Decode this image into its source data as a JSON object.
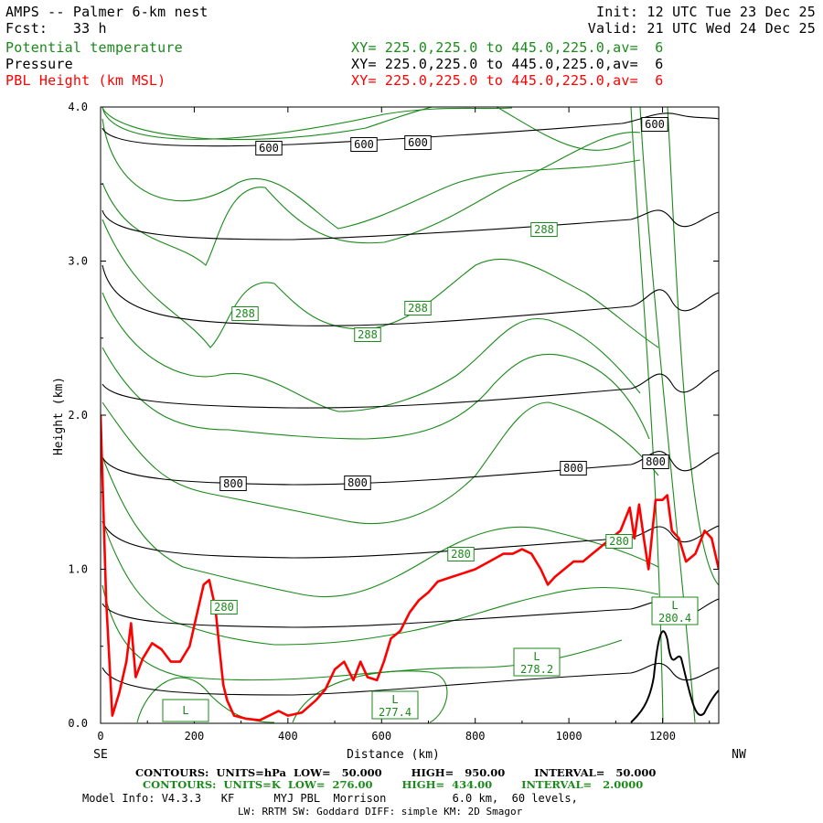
{
  "header": {
    "title": "AMPS -- Palmer 6-km nest",
    "init": "Init: 12 UTC Tue 23 Dec 25",
    "fcst": "Fcst:   33 h",
    "valid": "Valid: 21 UTC Wed 24 Dec 25",
    "fields": [
      {
        "name": "Potential temperature",
        "xy": "XY= 225.0,225.0 to 445.0,225.0,av=  6",
        "color": "#1a8a1a"
      },
      {
        "name": "Pressure",
        "xy": "XY= 225.0,225.0 to 445.0,225.0,av=  6",
        "color": "#000000"
      },
      {
        "name": "PBL Height (km MSL)",
        "xy": "XY= 225.0,225.0 to 445.0,225.0,av=  6",
        "color": "#ff0000"
      }
    ]
  },
  "chart_data": {
    "type": "line",
    "ylabel": "Height (km)",
    "xlabel": "Distance (km)",
    "xlim": [
      0,
      1320
    ],
    "ylim": [
      0,
      4.0
    ],
    "x_ticks": [
      "0",
      "200",
      "400",
      "600",
      "800",
      "1000",
      "1200"
    ],
    "y_ticks": [
      "0.0",
      "1.0",
      "2.0",
      "3.0",
      "4.0"
    ],
    "left_end_label": "SE",
    "right_end_label": "NW",
    "pressure_labels": [
      "600",
      "600",
      "600",
      "600",
      "800",
      "800",
      "800",
      "800"
    ],
    "theta_labels": [
      "288",
      "288",
      "288",
      "288",
      "280",
      "280",
      "280"
    ],
    "lows": [
      {
        "mark": "L",
        "value": ""
      },
      {
        "mark": "L",
        "value": "277.4"
      },
      {
        "mark": "L",
        "value": "278.2"
      },
      {
        "mark": "L",
        "value": "280.4"
      }
    ],
    "series": [
      {
        "name": "PBL Height (km MSL)",
        "color": "#ff0000",
        "x": [
          0,
          12,
          25,
          40,
          55,
          65,
          75,
          90,
          110,
          130,
          150,
          170,
          190,
          205,
          220,
          232,
          245,
          255,
          262,
          270,
          285,
          310,
          340,
          360,
          380,
          400,
          430,
          460,
          480,
          500,
          520,
          540,
          555,
          570,
          590,
          605,
          620,
          640,
          660,
          680,
          700,
          720,
          750,
          780,
          800,
          830,
          860,
          880,
          900,
          920,
          940,
          955,
          970,
          990,
          1010,
          1030,
          1050,
          1070,
          1090,
          1110,
          1130,
          1140,
          1150,
          1160,
          1170,
          1185,
          1200,
          1210,
          1220,
          1235,
          1250,
          1270,
          1290,
          1305,
          1320
        ],
        "y": [
          2.0,
          0.8,
          0.05,
          0.2,
          0.4,
          0.65,
          0.3,
          0.42,
          0.52,
          0.48,
          0.4,
          0.4,
          0.5,
          0.7,
          0.9,
          0.93,
          0.75,
          0.45,
          0.25,
          0.15,
          0.05,
          0.03,
          0.02,
          0.05,
          0.08,
          0.05,
          0.07,
          0.15,
          0.22,
          0.35,
          0.4,
          0.28,
          0.4,
          0.3,
          0.28,
          0.4,
          0.55,
          0.6,
          0.72,
          0.8,
          0.85,
          0.92,
          0.95,
          0.98,
          1.0,
          1.05,
          1.1,
          1.1,
          1.13,
          1.1,
          1.0,
          0.9,
          0.95,
          1.0,
          1.05,
          1.05,
          1.1,
          1.15,
          1.2,
          1.25,
          1.4,
          1.2,
          1.42,
          1.2,
          1.0,
          1.45,
          1.45,
          1.48,
          1.25,
          1.2,
          1.05,
          1.1,
          1.25,
          1.2,
          1.0
        ]
      }
    ]
  },
  "footer": {
    "contours_pressure": "CONTOURS:  UNITS=hPa  LOW=   50.000        HIGH=   950.00        INTERVAL=   50.000",
    "contours_theta": "CONTOURS:  UNITS=K  LOW=  276.00        HIGH=  434.00        INTERVAL=   2.0000",
    "model_info": "Model Info: V4.3.3   KF      MYJ PBL  Morrison          6.0 km,  60 levels,",
    "physics": "LW: RRTM SW: Goddard DIFF: simple KM: 2D Smagor"
  }
}
